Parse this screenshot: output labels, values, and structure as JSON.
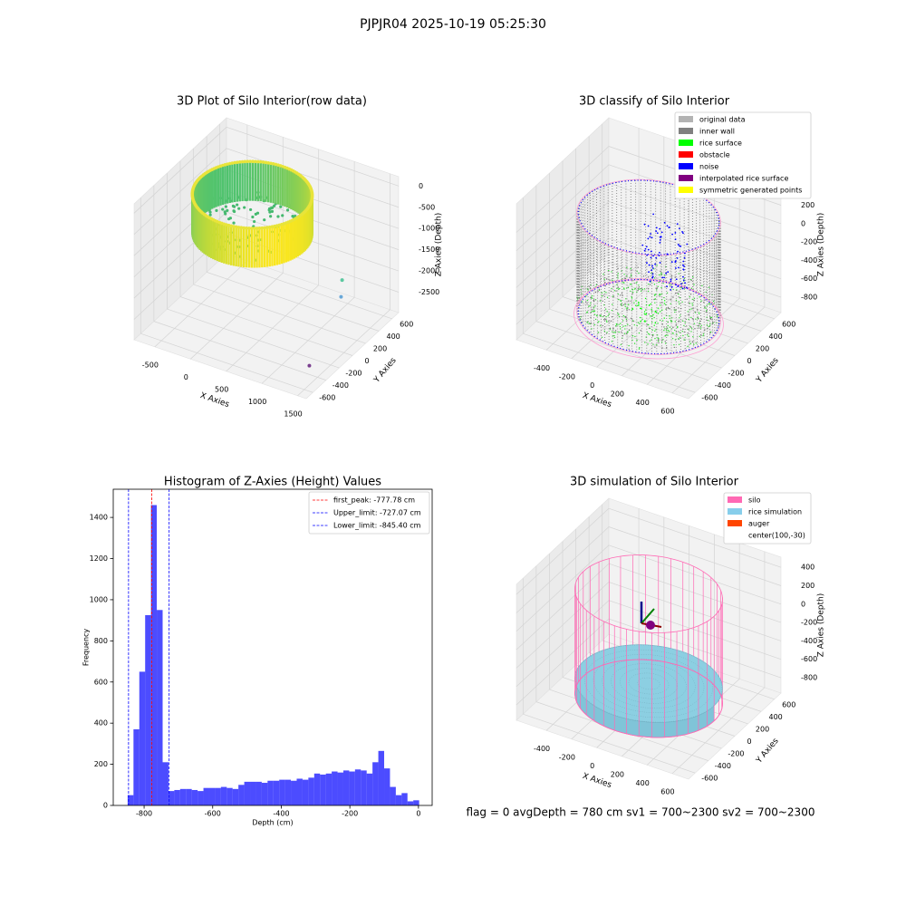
{
  "title": "PJPJR04 2025-10-19 05:25:30",
  "footer": "flag = 0     avgDepth = 780 cm  sv1 = 700~2300  sv2 = 700~2300",
  "chart_data": [
    {
      "type": "scatter3d",
      "title": "3D Plot of Silo Interior(row data)",
      "xlabel": "X Axies",
      "ylabel": "Y Axies",
      "zlabel": "Z Axies (Depth)",
      "xlim": [
        -790,
        1620
      ],
      "ylim": [
        -700,
        700
      ],
      "zlim": [
        -2980,
        220
      ],
      "xticks": [
        -500,
        0,
        500,
        1000,
        1500
      ],
      "yticks": [
        -600,
        -400,
        -200,
        0,
        200,
        400,
        600
      ],
      "zticks": [
        -2500,
        -2000,
        -1500,
        -1000,
        -500,
        0
      ],
      "cmap": "viridis",
      "grid": true
    },
    {
      "type": "scatter3d",
      "title": "3D classify of Silo Interior",
      "xlabel": "X Axies",
      "ylabel": "Y Axies",
      "zlabel": "Z Axies (Depth)",
      "xlim": [
        -638,
        730
      ],
      "ylim": [
        -700,
        700
      ],
      "zlim": [
        -967,
        510
      ],
      "xticks": [
        -400,
        -200,
        0,
        200,
        400,
        600
      ],
      "yticks": [
        -600,
        -400,
        -200,
        0,
        200,
        400,
        600
      ],
      "zticks": [
        -800,
        -600,
        -400,
        -200,
        0,
        200
      ],
      "grid": true,
      "legend": [
        {
          "name": "original data",
          "color": "#b3b3b3"
        },
        {
          "name": "inner wall",
          "color": "#808080"
        },
        {
          "name": "rice surface",
          "color": "#00ff00"
        },
        {
          "name": "obstacle",
          "color": "#ff0000"
        },
        {
          "name": "noise",
          "color": "#0000ff"
        },
        {
          "name": "interpolated rice surface",
          "color": "#800080"
        },
        {
          "name": "symmetric generated points",
          "color": "#ffff00"
        }
      ]
    },
    {
      "type": "histogram",
      "title": "Histogram of Z-Axies (Height) Values",
      "xlabel": "Depth (cm)",
      "ylabel": "Frequency",
      "color": "#0000ff",
      "alpha": 0.7,
      "bins": [
        -848,
        -831,
        -814,
        -797,
        -780,
        -763,
        -746,
        -729,
        -712,
        -695,
        -678,
        -661,
        -644,
        -627,
        -610,
        -593,
        -576,
        -559,
        -542,
        -525,
        -508,
        -491,
        -474,
        -457,
        -440,
        -423,
        -406,
        -389,
        -372,
        -355,
        -338,
        -321,
        -304,
        -287,
        -270,
        -253,
        -236,
        -219,
        -202,
        -185,
        -168,
        -151,
        -134,
        -117,
        -100,
        -83,
        -66,
        -49,
        -32,
        -15,
        2
      ],
      "values": [
        50,
        370,
        650,
        925,
        1460,
        950,
        210,
        70,
        75,
        80,
        80,
        75,
        70,
        85,
        85,
        85,
        90,
        85,
        80,
        100,
        115,
        115,
        115,
        110,
        120,
        120,
        125,
        125,
        120,
        130,
        125,
        135,
        155,
        150,
        155,
        165,
        160,
        170,
        165,
        175,
        170,
        155,
        210,
        265,
        180,
        90,
        50,
        60,
        20,
        25
      ],
      "xlim": [
        -890,
        40
      ],
      "ylim": [
        0,
        1537
      ],
      "xticks": [
        -800,
        -600,
        -400,
        -200,
        0
      ],
      "yticks": [
        0,
        200,
        400,
        600,
        800,
        1000,
        1200,
        1400
      ],
      "vlines": [
        {
          "label": "first_peak: -777.78 cm",
          "value": -777.78,
          "color": "#ff0000"
        },
        {
          "label": "Upper_limit: -727.07 cm",
          "value": -727.07,
          "color": "#0000ff"
        },
        {
          "label": "Lower_limit: -845.40 cm",
          "value": -845.4,
          "color": "#0000ff"
        }
      ],
      "legend_position": "upper right"
    },
    {
      "type": "surface3d",
      "title": "3D simulation of Silo Interior",
      "xlabel": "X Axies",
      "ylabel": "Y Axies",
      "zlabel": "Z Axies (Depth)",
      "xlim": [
        -638,
        730
      ],
      "ylim": [
        -700,
        700
      ],
      "zlim": [
        -967,
        510
      ],
      "xticks": [
        -400,
        -200,
        0,
        200,
        400,
        600
      ],
      "yticks": [
        -600,
        -400,
        -200,
        0,
        200,
        400,
        600
      ],
      "zticks": [
        -800,
        -600,
        -400,
        -200,
        0,
        200,
        400
      ],
      "grid": true,
      "legend": [
        {
          "name": "silo",
          "color": "#ff69b4"
        },
        {
          "name": "rice simulation",
          "color": "#87ceeb"
        },
        {
          "name": "auger",
          "color": "#ff4500"
        },
        {
          "name": "center(100,-30)",
          "color": "#ffffff"
        }
      ]
    }
  ]
}
